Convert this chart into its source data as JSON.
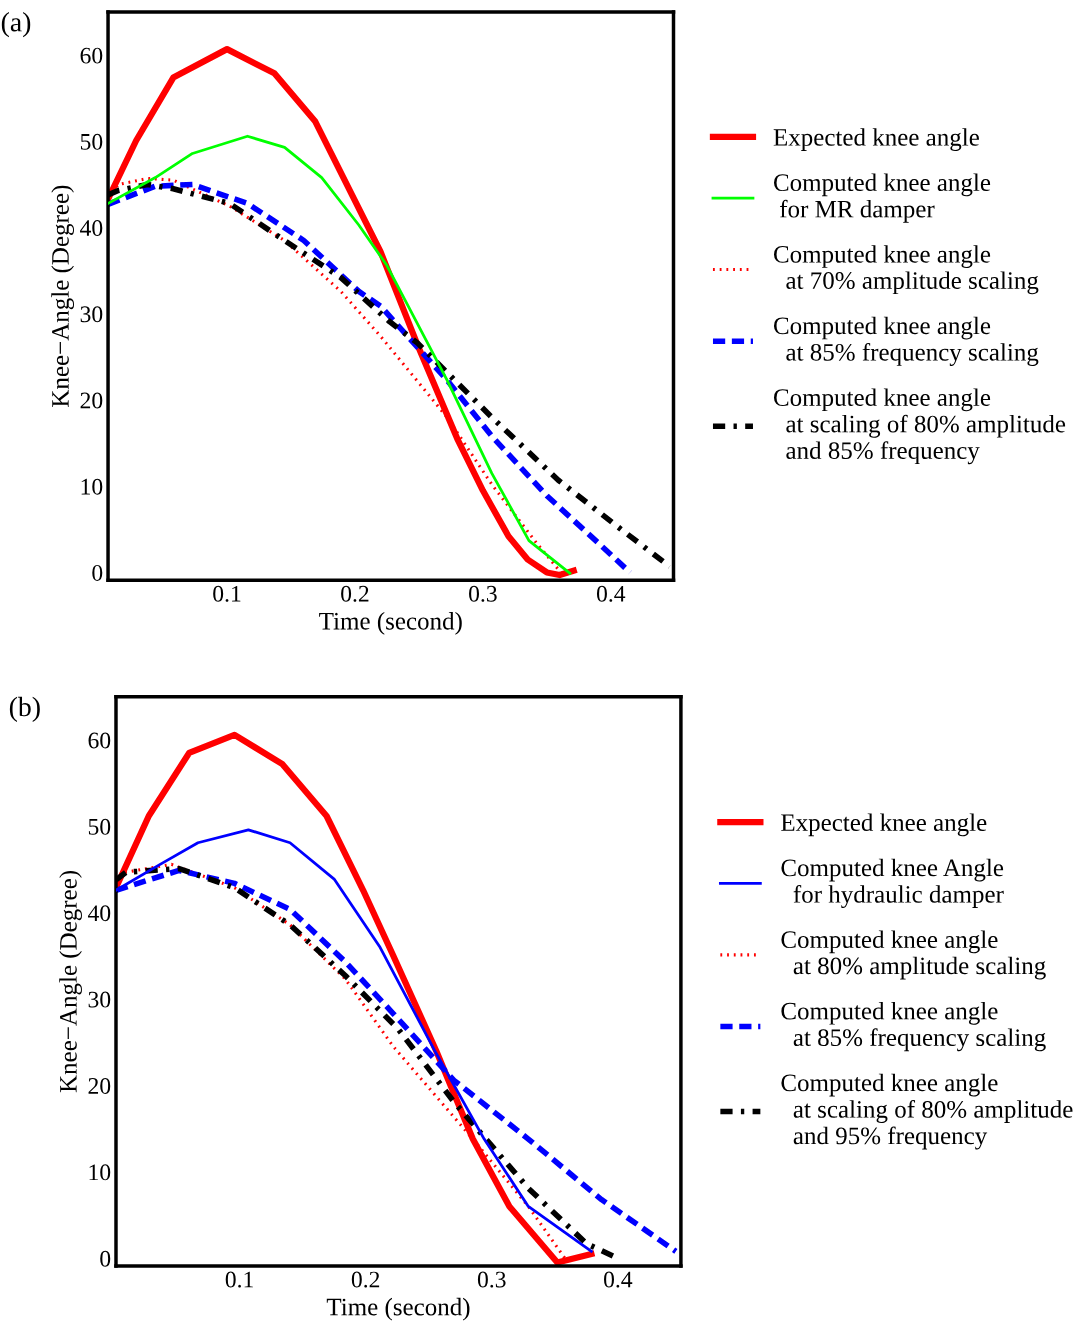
{
  "chart_data": [
    {
      "type": "line",
      "xlabel": "Time (second)",
      "ylabel": "Knee−Angle (Degree)",
      "annotations": [
        "(a)"
      ],
      "xlim": [
        0.007,
        0.449
      ],
      "ylim": [
        -0.9,
        65
      ],
      "xticks": [
        0.1,
        0.2,
        0.3,
        0.4
      ],
      "yticks": [
        0,
        10,
        20,
        30,
        40,
        50,
        60
      ],
      "grid": false,
      "legend": "right",
      "series": [
        {
          "name": "Expected knee angle",
          "color": "#ff0000",
          "line_style": "solid",
          "x": [
            0.007,
            0.029,
            0.058,
            0.1,
            0.137,
            0.169,
            0.198,
            0.22,
            0.25,
            0.28,
            0.3,
            0.32,
            0.335,
            0.35,
            0.36,
            0.371
          ],
          "values": [
            43.3,
            50.1,
            57.4,
            60.7,
            57.9,
            52.3,
            43.7,
            37.2,
            26,
            15.5,
            9.5,
            4.2,
            1.5,
            0,
            -0.3,
            0.2
          ]
        },
        {
          "name": "Computed knee angle\n for MR damper",
          "color": "#00ff00",
          "line_style": "solid",
          "x": [
            0.007,
            0.044,
            0.073,
            0.116,
            0.145,
            0.174,
            0.203,
            0.225,
            0.272,
            0.307,
            0.336,
            0.368
          ],
          "values": [
            42.8,
            45.8,
            48.6,
            50.6,
            49.3,
            45.8,
            40.3,
            35.6,
            22.3,
            11.5,
            3.7,
            -0.1
          ]
        },
        {
          "name": "Computed knee angle\n  at 70% amplitude scaling",
          "color": "#ff0000",
          "line_style": "dotted",
          "x": [
            0.007,
            0.015,
            0.038,
            0.058,
            0.102,
            0.145,
            0.189,
            0.22,
            0.272,
            0.307,
            0.342,
            0.361
          ],
          "values": [
            43.5,
            45,
            45.7,
            45.5,
            42.5,
            38.5,
            32.6,
            27.4,
            18,
            10.2,
            3.4,
            0
          ]
        },
        {
          "name": "Computed knee angle\n  at 85% frequency scaling",
          "color": "#0000ff",
          "line_style": "dashed",
          "x": [
            0.007,
            0.044,
            0.073,
            0.116,
            0.16,
            0.203,
            0.22,
            0.272,
            0.307,
            0.35,
            0.394,
            0.415
          ],
          "values": [
            42.7,
            44.8,
            45,
            42.8,
            38.5,
            32.6,
            30.9,
            22.3,
            15.8,
            8.9,
            2.9,
            0
          ]
        },
        {
          "name": "Computed knee angle\n  at scaling of 80% amplitude\n  and 85% frequency",
          "color": "#000000",
          "line_style": "dashdot",
          "x": [
            0.007,
            0.015,
            0.038,
            0.058,
            0.102,
            0.145,
            0.189,
            0.227,
            0.249,
            0.307,
            0.359,
            0.408,
            0.446
          ],
          "values": [
            43.8,
            44.3,
            45,
            44.5,
            42.8,
            38.5,
            34.2,
            29.1,
            26.6,
            18,
            10.7,
            5,
            0.7
          ]
        }
      ]
    },
    {
      "type": "line",
      "xlabel": "Time (second)",
      "ylabel": "Knee−Angle (Degree)",
      "annotations": [
        "(b)"
      ],
      "xlim": [
        0.002,
        0.45
      ],
      "ylim": [
        -0.9,
        65
      ],
      "xticks": [
        0.1,
        0.2,
        0.3,
        0.4
      ],
      "yticks": [
        0,
        10,
        20,
        30,
        40,
        50,
        60
      ],
      "grid": false,
      "legend": "right",
      "series": [
        {
          "name": "Expected knee angle",
          "color": "#ff0000",
          "line_style": "solid",
          "x": [
            0.002,
            0.028,
            0.06,
            0.096,
            0.134,
            0.169,
            0.198,
            0.222,
            0.256,
            0.285,
            0.314,
            0.352,
            0.379
          ],
          "values": [
            42.9,
            51.2,
            58.5,
            60.6,
            57.2,
            51.2,
            42.6,
            35,
            24,
            13.8,
            6,
            -0.5,
            0.5
          ]
        },
        {
          "name": "Computed knee Angle\n  for hydraulic damper",
          "color": "#0000ff",
          "line_style": "solid",
          "x": [
            0.002,
            0.037,
            0.067,
            0.107,
            0.14,
            0.175,
            0.211,
            0.256,
            0.294,
            0.329,
            0.379
          ],
          "values": [
            42.6,
            45.6,
            48.1,
            49.6,
            48.1,
            43.9,
            36.1,
            23.7,
            13.8,
            6,
            0.8
          ]
        },
        {
          "name": "Computed knee angle\n  at 80% amplitude scaling",
          "color": "#ff0000",
          "line_style": "dotted",
          "x": [
            0.002,
            0.01,
            0.046,
            0.096,
            0.14,
            0.184,
            0.222,
            0.285,
            0.329,
            0.358
          ],
          "values": [
            43.5,
            44.7,
            45.6,
            42.9,
            38.6,
            32.3,
            24.5,
            13.8,
            6,
            0
          ]
        },
        {
          "name": "Computed knee angle\n  at 85% frequency scaling",
          "color": "#0000ff",
          "line_style": "dashed",
          "x": [
            0.002,
            0.052,
            0.096,
            0.14,
            0.184,
            0.222,
            0.27,
            0.329,
            0.387,
            0.446
          ],
          "values": [
            42.6,
            44.9,
            43.4,
            40.4,
            34.3,
            28.3,
            20.6,
            13.8,
            6.8,
            0.8
          ]
        },
        {
          "name": "Computed knee angle\n  at scaling of 80% amplitude\n  and 95% frequency",
          "color": "#000000",
          "line_style": "dashdot",
          "x": [
            0.002,
            0.01,
            0.052,
            0.096,
            0.14,
            0.184,
            0.226,
            0.27,
            0.329,
            0.375,
            0.4
          ],
          "values": [
            43.8,
            44.7,
            45.1,
            42.9,
            38.6,
            32.7,
            26.5,
            18.1,
            8.1,
            1.7,
            0
          ]
        }
      ]
    }
  ]
}
